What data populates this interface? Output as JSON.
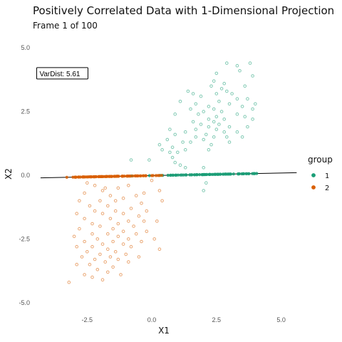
{
  "chart_data": {
    "type": "scatter",
    "title": "Positively Correlated Data with 1-Dimensional Projection",
    "subtitle": "Frame 1 of 100",
    "xlabel": "X1",
    "ylabel": "X2",
    "xlim": [
      -4.6,
      5.7
    ],
    "ylim": [
      -5.2,
      5.2
    ],
    "x_ticks": [
      {
        "value": -2.5,
        "label": "-2.5"
      },
      {
        "value": 0,
        "label": "0.0"
      },
      {
        "value": 2.5,
        "label": "2.5"
      },
      {
        "value": 5,
        "label": "5.0"
      }
    ],
    "y_ticks": [
      {
        "value": 5,
        "label": "5.0"
      },
      {
        "value": 2.5,
        "label": "2.5"
      },
      {
        "value": 0,
        "label": "0.0"
      },
      {
        "value": -2.5,
        "label": "-2.5"
      },
      {
        "value": -5,
        "label": "-5.0"
      }
    ],
    "grid": false,
    "legend": {
      "title": "group",
      "placement": "right"
    },
    "annotation": {
      "text": "VarDist: 5.61",
      "x": -4.45,
      "y": 4.0
    },
    "projection_line": {
      "x": [
        -4.3,
        5.6
      ],
      "y": [
        -0.1,
        0.1
      ]
    },
    "series": [
      {
        "name": "1",
        "color": "#1b9e77",
        "points": [
          [
            2.9,
            4.4
          ],
          [
            3.8,
            4.4
          ],
          [
            3.3,
            4.3
          ],
          [
            2.5,
            4.0
          ],
          [
            3.4,
            4.1
          ],
          [
            3.9,
            3.9
          ],
          [
            2.4,
            3.7
          ],
          [
            2.8,
            3.6
          ],
          [
            3.6,
            3.5
          ],
          [
            2.3,
            3.5
          ],
          [
            1.4,
            3.3
          ],
          [
            1.6,
            3.2
          ],
          [
            2.7,
            3.4
          ],
          [
            3.1,
            3.2
          ],
          [
            2.9,
            3.3
          ],
          [
            1.9,
            3.1
          ],
          [
            2.5,
            3.2
          ],
          [
            3.3,
            3.0
          ],
          [
            3.7,
            3.0
          ],
          [
            1.1,
            2.9
          ],
          [
            1.7,
            2.8
          ],
          [
            2.6,
            2.9
          ],
          [
            3.0,
            2.8
          ],
          [
            3.5,
            2.7
          ],
          [
            4.0,
            2.8
          ],
          [
            2.2,
            2.7
          ],
          [
            2.4,
            2.6
          ],
          [
            1.5,
            2.6
          ],
          [
            3.9,
            2.6
          ],
          [
            2.0,
            2.5
          ],
          [
            2.7,
            2.5
          ],
          [
            3.3,
            2.4
          ],
          [
            0.9,
            2.4
          ],
          [
            1.8,
            2.4
          ],
          [
            2.5,
            2.3
          ],
          [
            2.2,
            2.2
          ],
          [
            2.8,
            2.2
          ],
          [
            3.6,
            2.3
          ],
          [
            3.9,
            2.2
          ],
          [
            1.6,
            2.1
          ],
          [
            2.4,
            2.1
          ],
          [
            2.6,
            2.0
          ],
          [
            2.2,
            1.9
          ],
          [
            1.9,
            2.0
          ],
          [
            3.0,
            1.9
          ],
          [
            3.3,
            1.7
          ],
          [
            3.7,
            1.9
          ],
          [
            1.7,
            1.8
          ],
          [
            2.5,
            1.8
          ],
          [
            2.8,
            1.7
          ],
          [
            1.3,
            1.7
          ],
          [
            2.1,
            1.6
          ],
          [
            0.7,
            1.8
          ],
          [
            0.9,
            1.6
          ],
          [
            2.4,
            1.5
          ],
          [
            2.9,
            1.5
          ],
          [
            1.7,
            1.5
          ],
          [
            3.5,
            1.5
          ],
          [
            0.6,
            1.4
          ],
          [
            1.2,
            1.3
          ],
          [
            2.0,
            1.4
          ],
          [
            1.5,
            1.3
          ],
          [
            2.3,
            1.2
          ],
          [
            3.0,
            1.3
          ],
          [
            0.8,
            1.1
          ],
          [
            0.3,
            1.2
          ],
          [
            1.3,
            1.0
          ],
          [
            2.2,
            1.0
          ],
          [
            1.0,
            0.9
          ],
          [
            0.7,
            0.9
          ],
          [
            -0.1,
            0.6
          ],
          [
            0.9,
            0.5
          ],
          [
            1.3,
            0.3
          ],
          [
            -0.8,
            0.6
          ],
          [
            2.0,
            0.3
          ],
          [
            0.8,
            0.7
          ],
          [
            2.1,
            -0.3
          ],
          [
            2.0,
            -0.6
          ],
          [
            1.1,
            0.4
          ],
          [
            0.4,
            1.0
          ]
        ]
      },
      {
        "name": "2",
        "color": "#d95f02",
        "points": [
          [
            -2.5,
            -0.3
          ],
          [
            -2.2,
            -0.4
          ],
          [
            -1.8,
            -0.5
          ],
          [
            -1.3,
            -0.5
          ],
          [
            -0.9,
            -0.4
          ],
          [
            0.0,
            -0.2
          ],
          [
            -0.3,
            -0.7
          ],
          [
            -1.9,
            -0.6
          ],
          [
            -2.6,
            -0.7
          ],
          [
            -1.6,
            -0.8
          ],
          [
            -0.6,
            -0.8
          ],
          [
            0.3,
            -0.6
          ],
          [
            -1.1,
            -0.9
          ],
          [
            -2.0,
            -1.0
          ],
          [
            -2.8,
            -1.0
          ],
          [
            -1.4,
            -1.0
          ],
          [
            -0.4,
            -1.1
          ],
          [
            0.4,
            -1.0
          ],
          [
            -2.4,
            -1.2
          ],
          [
            -1.7,
            -1.2
          ],
          [
            -0.8,
            -1.3
          ],
          [
            -2.2,
            -1.4
          ],
          [
            -1.4,
            -1.4
          ],
          [
            -0.2,
            -1.4
          ],
          [
            -2.9,
            -1.5
          ],
          [
            -1.9,
            -1.5
          ],
          [
            -1.1,
            -1.5
          ],
          [
            -0.5,
            -1.6
          ],
          [
            -2.6,
            -1.7
          ],
          [
            -1.6,
            -1.7
          ],
          [
            -0.9,
            -1.8
          ],
          [
            -0.3,
            -1.8
          ],
          [
            0.2,
            -1.8
          ],
          [
            -2.3,
            -1.9
          ],
          [
            -1.3,
            -1.9
          ],
          [
            -2.0,
            -2.0
          ],
          [
            -0.7,
            -2.0
          ],
          [
            -1.5,
            -2.1
          ],
          [
            -2.8,
            -2.1
          ],
          [
            -1.1,
            -2.2
          ],
          [
            -0.2,
            -2.2
          ],
          [
            -2.3,
            -2.3
          ],
          [
            -1.7,
            -2.3
          ],
          [
            -0.6,
            -2.3
          ],
          [
            -3.0,
            -2.4
          ],
          [
            -1.3,
            -2.4
          ],
          [
            -0.9,
            -2.5
          ],
          [
            -2.1,
            -2.5
          ],
          [
            0.1,
            -2.5
          ],
          [
            -2.6,
            -2.6
          ],
          [
            -1.5,
            -2.6
          ],
          [
            -0.4,
            -2.6
          ],
          [
            -1.9,
            -2.7
          ],
          [
            -1.1,
            -2.7
          ],
          [
            -2.9,
            -2.8
          ],
          [
            -2.3,
            -2.8
          ],
          [
            -1.7,
            -2.9
          ],
          [
            -0.8,
            -2.8
          ],
          [
            0.3,
            -2.9
          ],
          [
            -2.5,
            -3.0
          ],
          [
            -1.4,
            -3.0
          ],
          [
            -2.0,
            -3.1
          ],
          [
            -1.0,
            -3.1
          ],
          [
            -2.7,
            -3.2
          ],
          [
            -1.6,
            -3.2
          ],
          [
            -2.2,
            -3.3
          ],
          [
            -1.3,
            -3.3
          ],
          [
            -0.5,
            -3.2
          ],
          [
            -1.8,
            -3.4
          ],
          [
            -2.9,
            -3.5
          ],
          [
            -2.4,
            -3.5
          ],
          [
            -1.5,
            -3.6
          ],
          [
            -0.9,
            -3.4
          ],
          [
            -2.1,
            -3.7
          ],
          [
            -1.7,
            -3.8
          ],
          [
            -2.6,
            -3.9
          ],
          [
            -1.2,
            -3.9
          ],
          [
            -2.3,
            -4.0
          ],
          [
            -3.2,
            -4.2
          ],
          [
            -1.9,
            -4.1
          ]
        ]
      }
    ]
  }
}
